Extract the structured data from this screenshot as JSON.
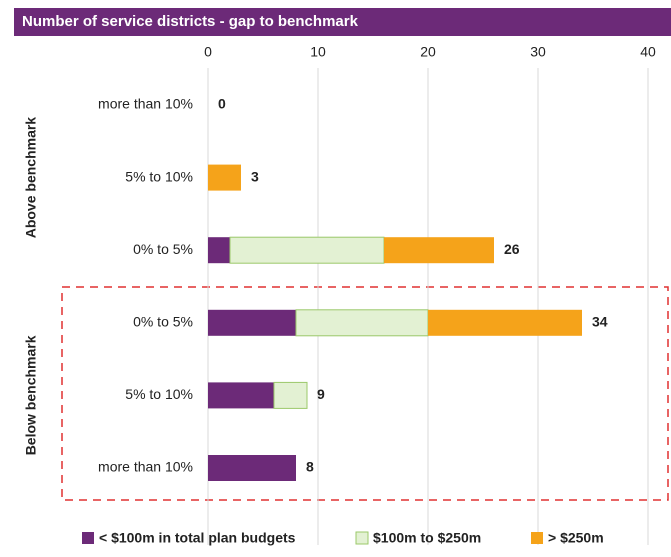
{
  "chart_data": {
    "type": "stacked-barh",
    "title": "Number of service districts - gap to benchmark",
    "groups": [
      {
        "name": "Above benchmark",
        "rows": [
          0,
          1,
          2
        ]
      },
      {
        "name": "Below benchmark",
        "rows": [
          3,
          4,
          5
        ]
      }
    ],
    "categories": [
      "more than 10%",
      "5% to 10%",
      "0% to 5%",
      "0% to 5%",
      "5% to 10%",
      "more than 10%"
    ],
    "series": [
      {
        "name": "< $100m in total plan budgets",
        "color": "#6c2a78",
        "values": [
          0,
          0,
          2,
          8,
          6,
          8
        ]
      },
      {
        "name": "$100m to $250m",
        "color": "#e3f1d3",
        "values": [
          0,
          0,
          14,
          12,
          3,
          0
        ]
      },
      {
        "name": "> $250m",
        "color": "#f5a31a",
        "values": [
          0,
          3,
          10,
          14,
          0,
          0
        ]
      }
    ],
    "totals": [
      0,
      3,
      26,
      34,
      9,
      8
    ],
    "xlim": [
      0,
      42
    ],
    "xticks": [
      0,
      10,
      20,
      30,
      40
    ],
    "grid": true
  }
}
